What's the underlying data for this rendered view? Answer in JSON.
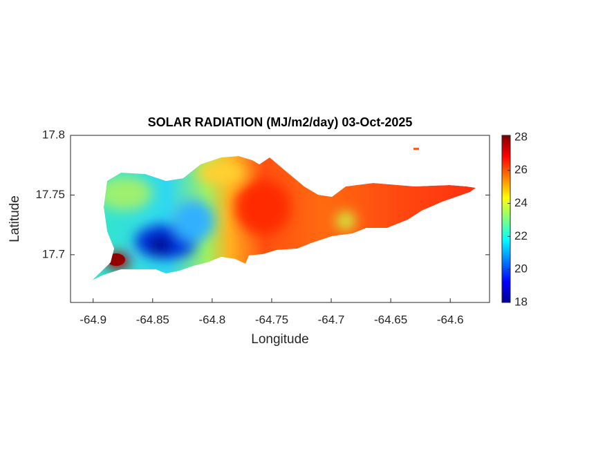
{
  "chart_data": {
    "type": "heatmap",
    "title": "SOLAR RADIATION (MJ/m2/day) 03-Oct-2025",
    "x_label": "Longitude",
    "y_label": "Latitude",
    "xlim": [
      -64.919,
      -64.567
    ],
    "xticks": [
      -64.9,
      -64.85,
      -64.8,
      -64.75,
      -64.7,
      -64.65,
      -64.6
    ],
    "ylim": [
      17.66,
      17.8
    ],
    "yticks": [
      17.7,
      17.75,
      17.8
    ],
    "colormap": "jet",
    "clim": [
      18,
      28.12
    ],
    "cticks": [
      18,
      20,
      22,
      24,
      26,
      28
    ]
  }
}
